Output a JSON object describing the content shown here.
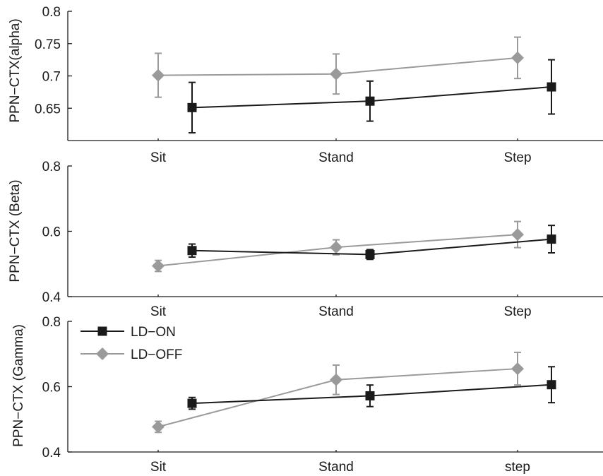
{
  "chart_data": [
    {
      "type": "line",
      "ylabel": "PPN−CTX(alpha)",
      "categories": [
        "Sit",
        "Stand",
        "Step"
      ],
      "ylim": [
        0.6,
        0.8
      ],
      "yticks": [
        "0.65",
        "0.7",
        "0.75",
        "0.8"
      ],
      "grid": false,
      "series": [
        {
          "name": "LD−ON",
          "color": "#1a1a1a",
          "marker": "square",
          "values": [
            0.651,
            0.661,
            0.683
          ],
          "errors": [
            0.039,
            0.031,
            0.042
          ]
        },
        {
          "name": "LD−OFF",
          "color": "#9a9a9a",
          "marker": "diamond",
          "values": [
            0.701,
            0.703,
            0.728
          ],
          "errors": [
            0.034,
            0.031,
            0.032
          ]
        }
      ]
    },
    {
      "type": "line",
      "ylabel": "PPN−CTX (Beta)",
      "categories": [
        "Sit",
        "Stand",
        "Step"
      ],
      "ylim": [
        0.4,
        0.8
      ],
      "yticks": [
        "0.4",
        "0.6",
        "0.8"
      ],
      "grid": false,
      "series": [
        {
          "name": "LD−ON",
          "color": "#1a1a1a",
          "marker": "square",
          "values": [
            0.541,
            0.529,
            0.576
          ],
          "errors": [
            0.02,
            0.015,
            0.042
          ]
        },
        {
          "name": "LD−OFF",
          "color": "#9a9a9a",
          "marker": "diamond",
          "values": [
            0.494,
            0.551,
            0.59
          ],
          "errors": [
            0.017,
            0.023,
            0.04
          ]
        }
      ]
    },
    {
      "type": "line",
      "ylabel": "PPN−CTX (Gamma)",
      "categories": [
        "Sit",
        "Stand",
        "step"
      ],
      "ylim": [
        0.4,
        0.8
      ],
      "yticks": [
        "0.4",
        "0.6",
        "0.8"
      ],
      "grid": false,
      "legend": {
        "placement": "top-left",
        "entries": [
          "LD−ON",
          "LD−OFF"
        ]
      },
      "series": [
        {
          "name": "LD−ON",
          "color": "#1a1a1a",
          "marker": "square",
          "values": [
            0.549,
            0.572,
            0.606
          ],
          "errors": [
            0.018,
            0.033,
            0.055
          ]
        },
        {
          "name": "LD−OFF",
          "color": "#9a9a9a",
          "marker": "diamond",
          "values": [
            0.477,
            0.621,
            0.655
          ],
          "errors": [
            0.017,
            0.045,
            0.05
          ]
        }
      ]
    }
  ]
}
